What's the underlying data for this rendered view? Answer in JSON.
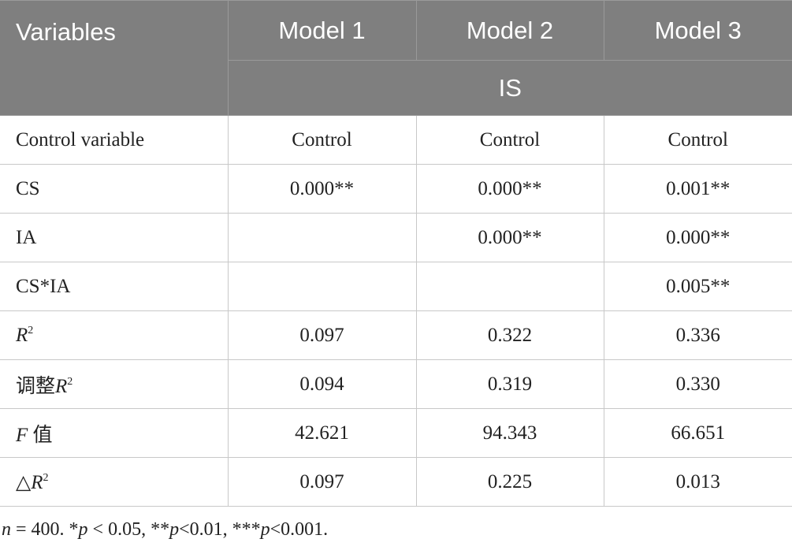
{
  "table": {
    "header": {
      "variables": "Variables",
      "models": [
        "Model 1",
        "Model 2",
        "Model 3"
      ],
      "dependent": "IS"
    },
    "rows": [
      {
        "label": "Control variable",
        "model1": "Control",
        "model2": "Control",
        "model3": "Control"
      },
      {
        "label": "CS",
        "model1": "0.000**",
        "model2": "0.000**",
        "model3": "0.001**"
      },
      {
        "label": "IA",
        "model2": "0.000**",
        "model3": "0.000**"
      },
      {
        "label": "CS*IA",
        "model3": "0.005**"
      },
      {
        "label": [
          "R",
          "2"
        ],
        "model1": "0.097",
        "model2": "0.322",
        "model3": "0.336"
      },
      {
        "label": [
          "调整",
          "R",
          "2"
        ],
        "model1": "0.094",
        "model2": "0.319",
        "model3": "0.330"
      },
      {
        "label": [
          "F",
          " 值"
        ],
        "model1": "42.621",
        "model2": "94.343",
        "model3": "66.651"
      },
      {
        "label": [
          "△",
          "R",
          "2"
        ],
        "model1": "0.097",
        "model2": "0.225",
        "model3": "0.013"
      }
    ]
  },
  "footnote": [
    "n",
    " = 400. *",
    "p",
    " < 0.05, **",
    "p",
    "<0.01, ***",
    "p",
    "<0.001."
  ]
}
